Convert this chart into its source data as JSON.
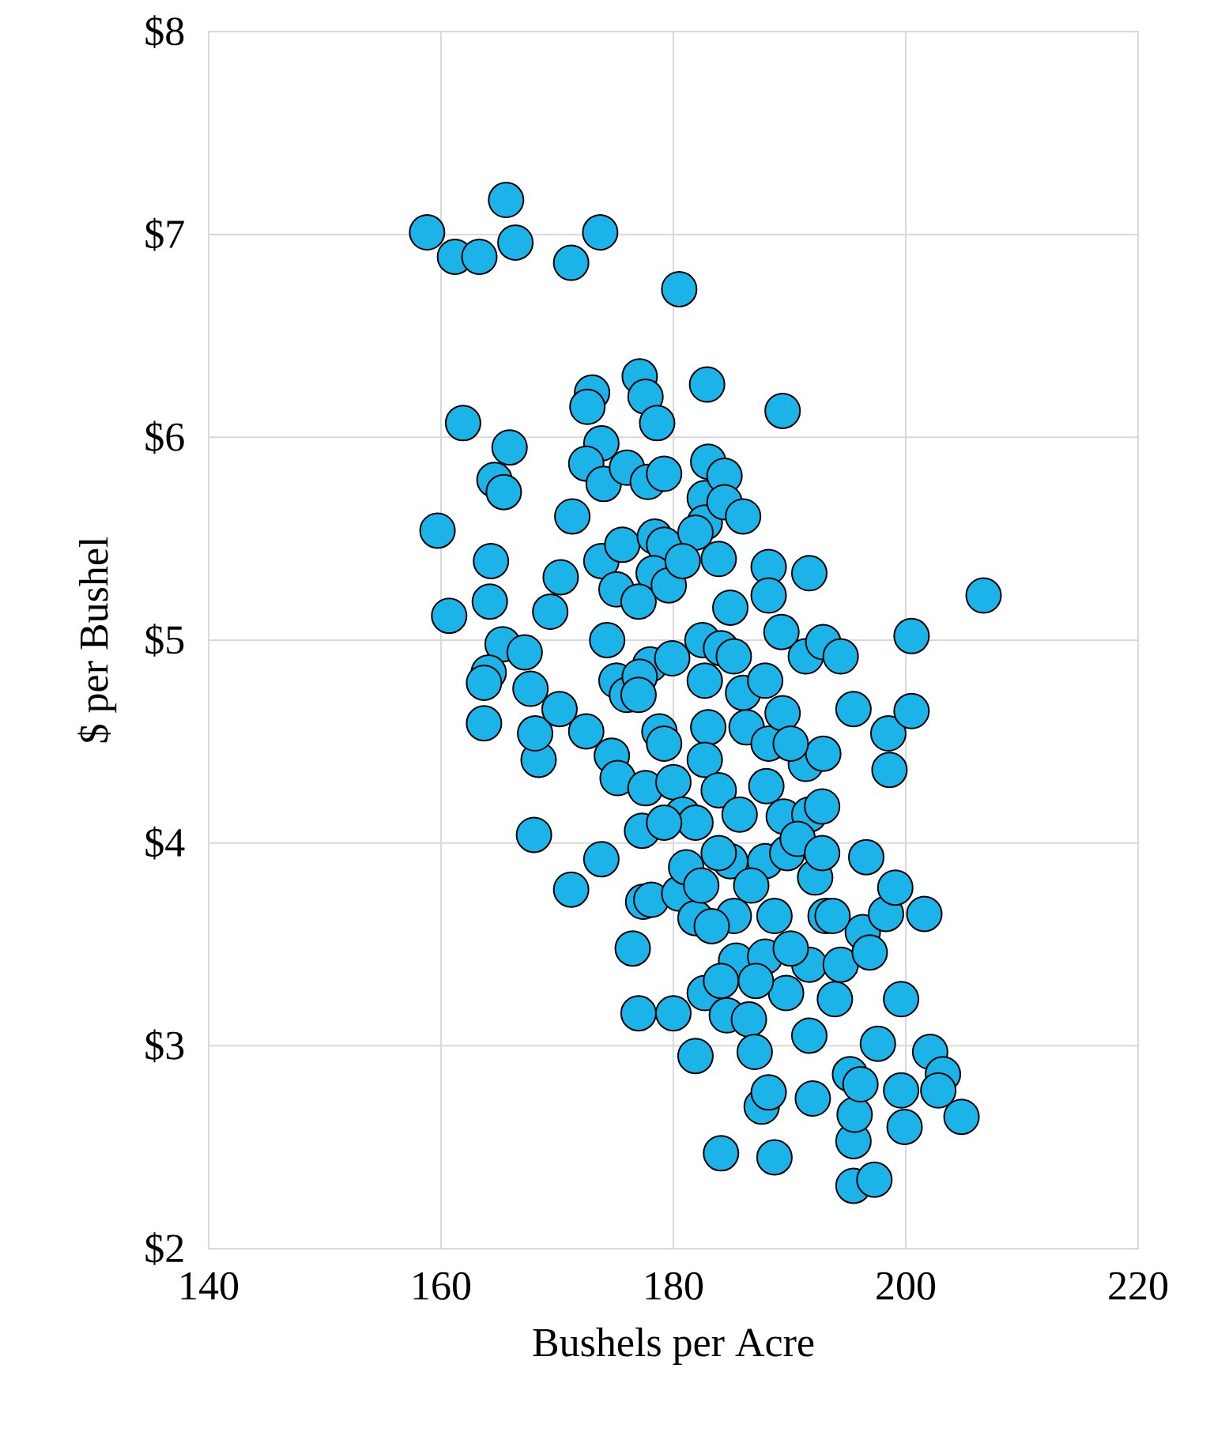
{
  "chart_data": {
    "type": "scatter",
    "xlabel": "Bushels per Acre",
    "ylabel": "$ per Bushel",
    "xlim": [
      140,
      220
    ],
    "xticks": [
      140,
      160,
      180,
      200,
      220
    ],
    "ylim": [
      2,
      8
    ],
    "yticks": [
      {
        "value": 2,
        "label": "$2"
      },
      {
        "value": 3,
        "label": "$3"
      },
      {
        "value": 4,
        "label": "$4"
      },
      {
        "value": 5,
        "label": "$5"
      },
      {
        "value": 6,
        "label": "$6"
      },
      {
        "value": 7,
        "label": "$7"
      },
      {
        "value": 8,
        "label": "$8"
      }
    ],
    "grid": true,
    "marker": "circle",
    "color": "#1cb3e8",
    "x": [
      158.8,
      161.2,
      163.3,
      165.6,
      166.4,
      173.7,
      171.2,
      180.5,
      161.9,
      159.7,
      160.7,
      165.9,
      164.6,
      165.4,
      164.3,
      164.2,
      165.3,
      164.1,
      163.7,
      163.7,
      168.0,
      168.4,
      168.1,
      167.7,
      167.2,
      170.2,
      169.4,
      170.3,
      171.3,
      171.2,
      172.5,
      173.8,
      173.0,
      172.6,
      173.8,
      172.5,
      174.0,
      173.8,
      175.6,
      175.1,
      174.3,
      175.1,
      176.0,
      174.7,
      175.2,
      176.0,
      177.1,
      177.6,
      178.6,
      177.8,
      179.2,
      178.4,
      179.2,
      178.3,
      177.0,
      179.6,
      178.0,
      179.9,
      177.1,
      177.0,
      178.8,
      179.2,
      177.6,
      177.3,
      177.4,
      178.1,
      177.0,
      180.0,
      180.0,
      180.8,
      180.5,
      181.1,
      181.9,
      181.9,
      182.4,
      182.9,
      182.7,
      183.0,
      182.7,
      184.4,
      184.4,
      181.9,
      180.8,
      182.5,
      182.7,
      183.0,
      182.7,
      183.9,
      184.1,
      183.9,
      184.9,
      185.2,
      186.0,
      186.0,
      186.3,
      185.7,
      184.9,
      185.2,
      185.4,
      183.3,
      182.7,
      184.1,
      184.6,
      184.1,
      186.5,
      187.0,
      187.6,
      188.2,
      188.7,
      187.9,
      187.9,
      188.0,
      188.2,
      187.9,
      188.2,
      188.2,
      189.3,
      189.4,
      189.4,
      189.5,
      189.8,
      189.7,
      191.4,
      191.7,
      191.4,
      191.7,
      192.2,
      191.7,
      191.7,
      192.0,
      192.9,
      192.9,
      193.1,
      193.9,
      194.4,
      195.2,
      195.5,
      195.5,
      197.3,
      195.6,
      196.1,
      194.4,
      195.5,
      196.6,
      196.3,
      196.9,
      197.6,
      198.6,
      198.5,
      198.3,
      199.1,
      199.6,
      199.9,
      200.5,
      200.5,
      199.6,
      202.1,
      203.2,
      201.6,
      204.8,
      206.7,
      202.8,
      190.1,
      190.7,
      186.7,
      188.7,
      192.8,
      183.9,
      181.9,
      179.2,
      176.5,
      192.8,
      190.1,
      187.1,
      193.7
    ],
    "values": [
      7.01,
      6.89,
      6.89,
      7.17,
      6.96,
      7.01,
      6.86,
      6.73,
      6.07,
      5.54,
      5.12,
      5.95,
      5.79,
      5.73,
      5.39,
      5.19,
      4.98,
      4.84,
      4.79,
      4.59,
      4.04,
      4.41,
      4.54,
      4.76,
      4.94,
      4.66,
      5.14,
      5.31,
      5.61,
      3.77,
      4.55,
      3.92,
      6.22,
      6.15,
      5.97,
      5.87,
      5.77,
      5.39,
      5.47,
      5.25,
      5.0,
      4.8,
      4.73,
      4.43,
      4.32,
      5.85,
      6.3,
      6.2,
      6.07,
      5.78,
      5.82,
      5.51,
      5.47,
      5.33,
      5.19,
      5.27,
      4.88,
      4.91,
      4.82,
      4.73,
      4.55,
      4.49,
      4.27,
      4.06,
      3.71,
      3.72,
      3.16,
      3.16,
      4.3,
      4.14,
      3.75,
      3.88,
      3.63,
      2.95,
      3.79,
      6.26,
      5.7,
      5.88,
      5.58,
      5.81,
      5.68,
      5.53,
      5.39,
      5.0,
      4.8,
      4.57,
      4.41,
      4.26,
      4.96,
      5.4,
      5.16,
      4.92,
      5.61,
      4.74,
      4.57,
      4.14,
      3.91,
      3.64,
      3.42,
      3.59,
      3.26,
      3.32,
      3.15,
      2.47,
      3.13,
      2.97,
      2.7,
      2.77,
      2.45,
      3.44,
      3.91,
      4.28,
      4.49,
      4.8,
      5.36,
      5.22,
      5.04,
      4.64,
      6.13,
      4.13,
      3.95,
      3.26,
      4.39,
      5.33,
      4.92,
      4.14,
      3.83,
      3.4,
      3.05,
      2.74,
      4.99,
      4.44,
      3.64,
      3.23,
      3.4,
      2.86,
      2.53,
      2.31,
      2.34,
      2.66,
      2.81,
      4.92,
      4.66,
      3.93,
      3.56,
      3.46,
      3.01,
      4.36,
      4.54,
      3.65,
      3.78,
      3.23,
      2.6,
      5.02,
      4.65,
      2.78,
      2.97,
      2.86,
      3.65,
      2.65,
      5.22,
      2.78,
      4.49,
      4.02,
      3.79,
      3.64,
      3.95,
      3.95,
      4.1,
      4.1,
      3.48,
      4.18,
      3.48,
      3.32,
      3.64
    ]
  }
}
